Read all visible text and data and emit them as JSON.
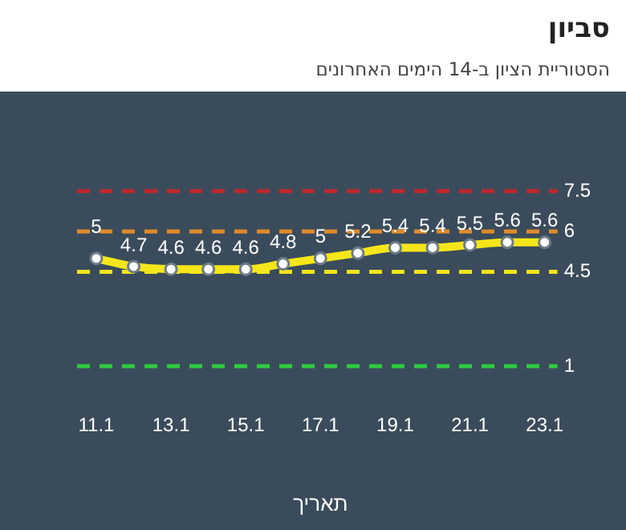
{
  "chart_data": {
    "type": "line",
    "title": "סביון",
    "subtitle": "הסטוריית הציון ב-14 הימים האחרונים",
    "xlabel": "תאריך",
    "categories": [
      "11.1",
      null,
      "13.1",
      null,
      "15.1",
      null,
      "17.1",
      null,
      "19.1",
      null,
      "21.1",
      null,
      "23.1"
    ],
    "series": [
      {
        "color": "#f5e61a",
        "values": [
          5,
          4.7,
          4.6,
          4.6,
          4.6,
          4.8,
          5,
          5.2,
          5.4,
          5.4,
          5.5,
          5.6,
          5.6
        ]
      }
    ],
    "ylim": [
      1,
      7.5
    ],
    "yticks": [
      1,
      4.5,
      6,
      7.5
    ],
    "ref_lines": [
      {
        "axis": "y",
        "value": 7.5,
        "color": "#c0272d",
        "line_style": "dashed"
      },
      {
        "axis": "y",
        "value": 6,
        "color": "#e08a2a",
        "line_style": "dashed"
      },
      {
        "axis": "y",
        "value": 4.5,
        "color": "#f2e41c",
        "line_style": "dashed"
      },
      {
        "axis": "y",
        "value": 1,
        "color": "#2ecc40",
        "line_style": "dashed"
      }
    ],
    "data_labels": true,
    "marker": "circle",
    "grid": false,
    "line_style": "solid"
  }
}
